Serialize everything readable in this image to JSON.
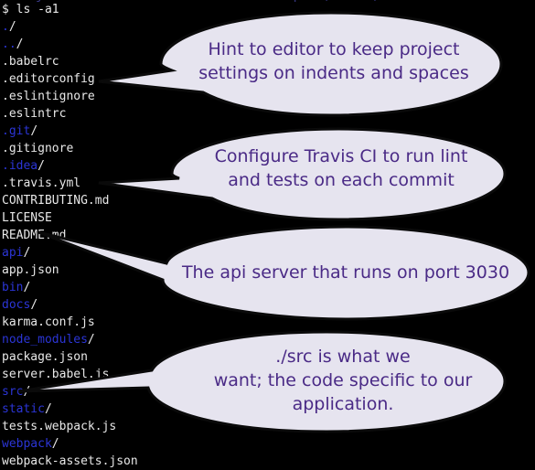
{
  "terminal": {
    "prompt_line": "$ ls -a1",
    "entries": [
      {
        "name": ".",
        "type": "dir"
      },
      {
        "name": "..",
        "type": "dir"
      },
      {
        "name": ".babelrc",
        "type": "file"
      },
      {
        "name": ".editorconfig",
        "type": "file"
      },
      {
        "name": ".eslintignore",
        "type": "file"
      },
      {
        "name": ".eslintrc",
        "type": "file"
      },
      {
        "name": ".git",
        "type": "dir"
      },
      {
        "name": ".gitignore",
        "type": "file"
      },
      {
        "name": ".idea",
        "type": "dir"
      },
      {
        "name": ".travis.yml",
        "type": "file"
      },
      {
        "name": "CONTRIBUTING.md",
        "type": "file"
      },
      {
        "name": "LICENSE",
        "type": "file"
      },
      {
        "name": "README.md",
        "type": "file"
      },
      {
        "name": "api",
        "type": "dir"
      },
      {
        "name": "app.json",
        "type": "file"
      },
      {
        "name": "bin",
        "type": "dir"
      },
      {
        "name": "docs",
        "type": "dir"
      },
      {
        "name": "karma.conf.js",
        "type": "file"
      },
      {
        "name": "node_modules",
        "type": "dir"
      },
      {
        "name": "package.json",
        "type": "file"
      },
      {
        "name": "server.babel.js",
        "type": "file"
      },
      {
        "name": "src",
        "type": "dir"
      },
      {
        "name": "static",
        "type": "dir"
      },
      {
        "name": "tests.webpack.js",
        "type": "file"
      },
      {
        "name": "webpack",
        "type": "dir"
      },
      {
        "name": "webpack-assets.json",
        "type": "file"
      }
    ],
    "colors": {
      "background": "#000000",
      "file": "#e8e8e8",
      "dir": "#2b35d6"
    }
  },
  "callouts": [
    {
      "text": "Hint to editor to keep project\nsettings on indents and spaces"
    },
    {
      "text": "Configure Travis CI to run lint\nand tests on each commit"
    },
    {
      "text": "The api server that runs on port 3030"
    },
    {
      "text": "./src is what we\nwant; the code specific to our\napplication."
    }
  ],
  "callout_colors": {
    "fill": "#e6e4ef",
    "stroke": "#0a0a0a",
    "text": "#4a2a86"
  }
}
